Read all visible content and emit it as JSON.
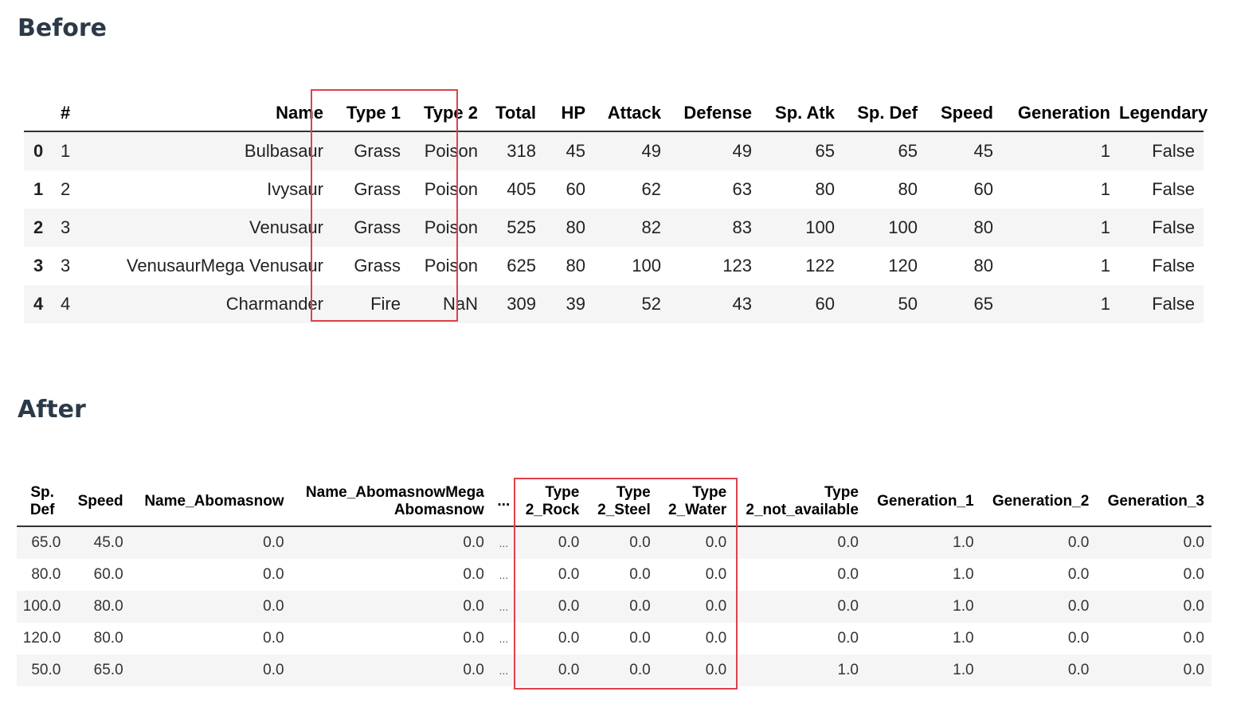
{
  "before": {
    "title": "Before",
    "columns": [
      "",
      "#",
      "Name",
      "Type 1",
      "Type 2",
      "Total",
      "HP",
      "Attack",
      "Defense",
      "Sp. Atk",
      "Sp. Def",
      "Speed",
      "Generation",
      "Legendary"
    ],
    "rows": [
      [
        "0",
        "1",
        "Bulbasaur",
        "Grass",
        "Poison",
        "318",
        "45",
        "49",
        "49",
        "65",
        "65",
        "45",
        "1",
        "False"
      ],
      [
        "1",
        "2",
        "Ivysaur",
        "Grass",
        "Poison",
        "405",
        "60",
        "62",
        "63",
        "80",
        "80",
        "60",
        "1",
        "False"
      ],
      [
        "2",
        "3",
        "Venusaur",
        "Grass",
        "Poison",
        "525",
        "80",
        "82",
        "83",
        "100",
        "100",
        "80",
        "1",
        "False"
      ],
      [
        "3",
        "3",
        "VenusaurMega Venusaur",
        "Grass",
        "Poison",
        "625",
        "80",
        "100",
        "123",
        "122",
        "120",
        "80",
        "1",
        "False"
      ],
      [
        "4",
        "4",
        "Charmander",
        "Fire",
        "NaN",
        "309",
        "39",
        "52",
        "43",
        "60",
        "50",
        "65",
        "1",
        "False"
      ]
    ]
  },
  "after": {
    "title": "After",
    "columns": [
      "Sp. Def",
      "Speed",
      "Name_Abomasnow",
      "Name_AbomasnowMega Abomasnow",
      "...",
      "Type 2_Rock",
      "Type 2_Steel",
      "Type 2_Water",
      "Type 2_not_available",
      "Generation_1",
      "Generation_2",
      "Generation_3"
    ],
    "rows": [
      [
        "65.0",
        "45.0",
        "0.0",
        "0.0",
        "...",
        "0.0",
        "0.0",
        "0.0",
        "0.0",
        "1.0",
        "0.0",
        "0.0"
      ],
      [
        "80.0",
        "60.0",
        "0.0",
        "0.0",
        "...",
        "0.0",
        "0.0",
        "0.0",
        "0.0",
        "1.0",
        "0.0",
        "0.0"
      ],
      [
        "100.0",
        "80.0",
        "0.0",
        "0.0",
        "...",
        "0.0",
        "0.0",
        "0.0",
        "0.0",
        "1.0",
        "0.0",
        "0.0"
      ],
      [
        "120.0",
        "80.0",
        "0.0",
        "0.0",
        "...",
        "0.0",
        "0.0",
        "0.0",
        "0.0",
        "1.0",
        "0.0",
        "0.0"
      ],
      [
        "50.0",
        "65.0",
        "0.0",
        "0.0",
        "...",
        "0.0",
        "0.0",
        "0.0",
        "1.0",
        "1.0",
        "0.0",
        "0.0"
      ]
    ]
  },
  "colors": {
    "highlight": "#e0404a",
    "title": "#2c3a47",
    "stripe": "#f5f5f5"
  }
}
